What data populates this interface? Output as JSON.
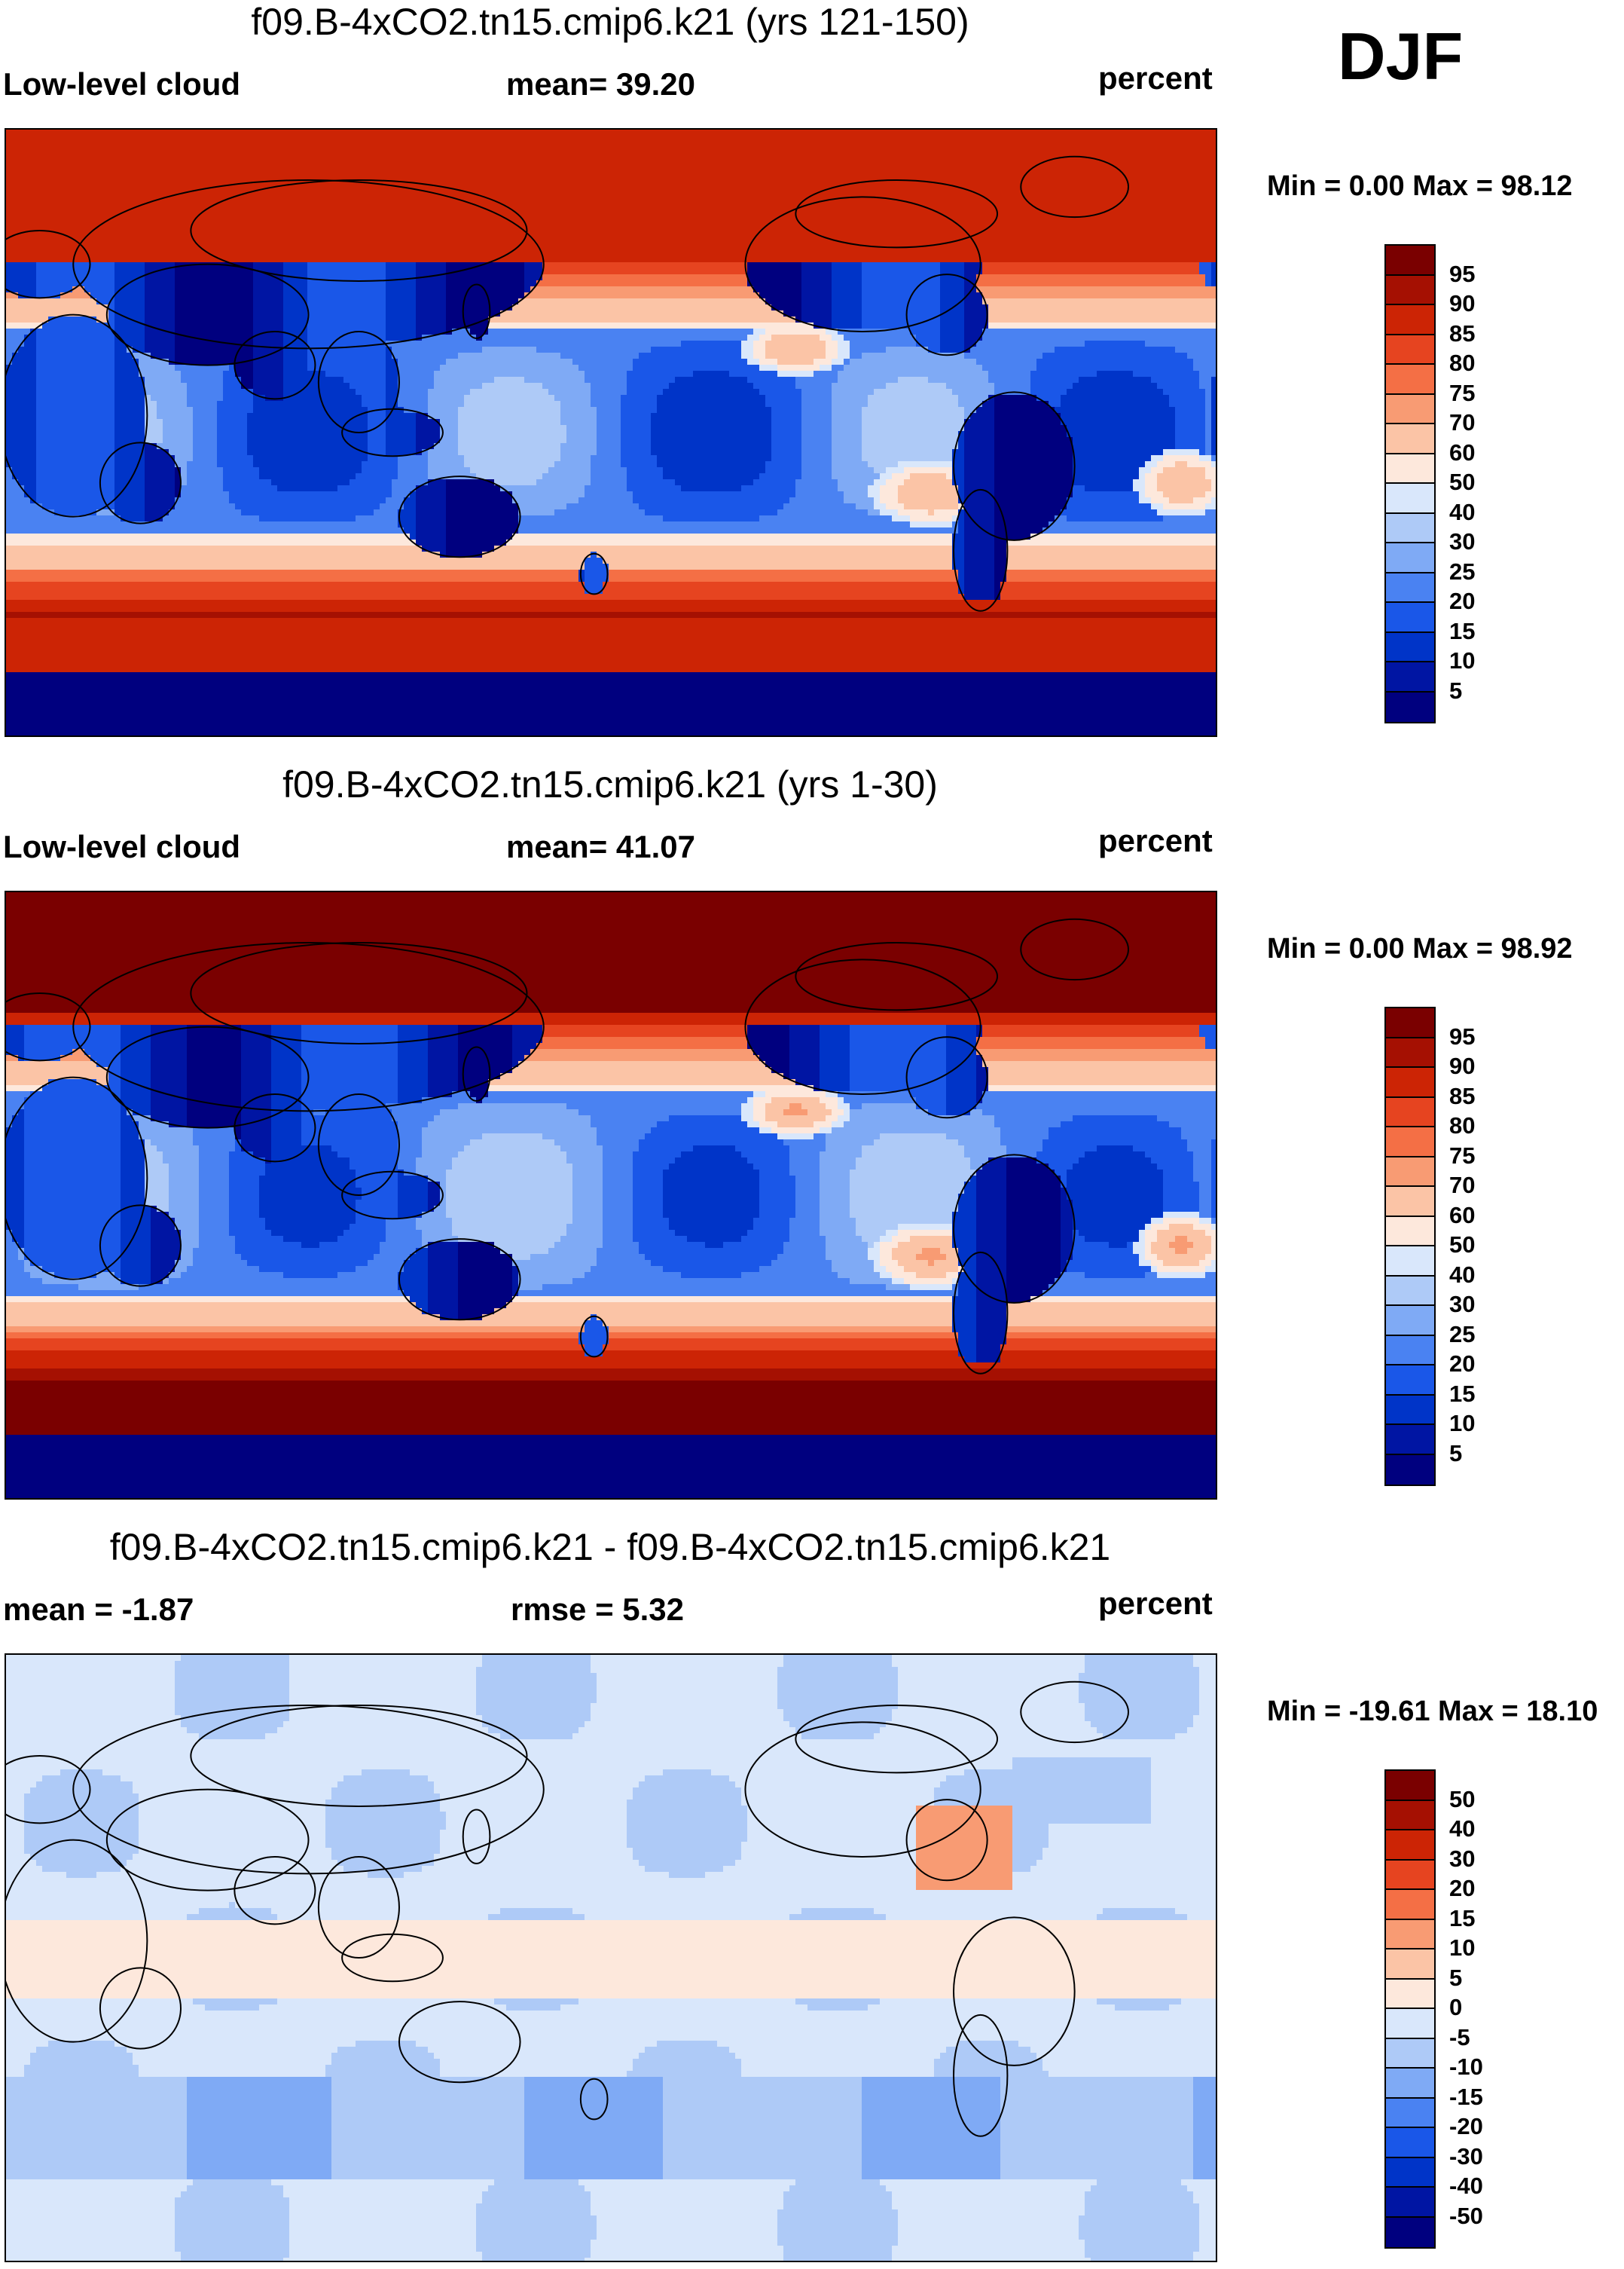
{
  "season": "DJF",
  "palette": [
    "#00007f",
    "#0015a3",
    "#0034c8",
    "#1a57e8",
    "#4a82f2",
    "#7faaf5",
    "#aecaf7",
    "#d9e7fb",
    "#fde8dc",
    "#fbc4a6",
    "#f89b73",
    "#f46f45",
    "#e64420",
    "#cc2405",
    "#a51002",
    "#7a0000"
  ],
  "panels": [
    {
      "title": "f09.B-4xCO2.tn15.cmip6.k21 (yrs 121-150)",
      "left_label": "Low-level cloud",
      "center_label": "mean=  39.20",
      "right_label": "percent",
      "minmax": "Min =   0.00 Max =  98.12",
      "levels": [
        "95",
        "90",
        "85",
        "80",
        "75",
        "70",
        "60",
        "50",
        "40",
        "30",
        "25",
        "20",
        "15",
        "10",
        "5"
      ],
      "field": "abs121"
    },
    {
      "title": "f09.B-4xCO2.tn15.cmip6.k21 (yrs 1-30)",
      "left_label": "Low-level cloud",
      "center_label": "mean=  41.07",
      "right_label": "percent",
      "minmax": "Min =   0.00 Max =  98.92",
      "levels": [
        "95",
        "90",
        "85",
        "80",
        "75",
        "70",
        "60",
        "50",
        "40",
        "30",
        "25",
        "20",
        "15",
        "10",
        "5"
      ],
      "field": "abs1"
    },
    {
      "title": "f09.B-4xCO2.tn15.cmip6.k21 - f09.B-4xCO2.tn15.cmip6.k21",
      "left_label": "mean =  -1.87",
      "center_label": "rmse =    5.32",
      "right_label": "percent",
      "minmax": "Min = -19.61 Max =  18.10",
      "levels": [
        "50",
        "40",
        "30",
        "20",
        "15",
        "10",
        "5",
        "0",
        "-5",
        "-10",
        "-15",
        "-20",
        "-30",
        "-40",
        "-50"
      ],
      "field": "diff"
    }
  ]
}
